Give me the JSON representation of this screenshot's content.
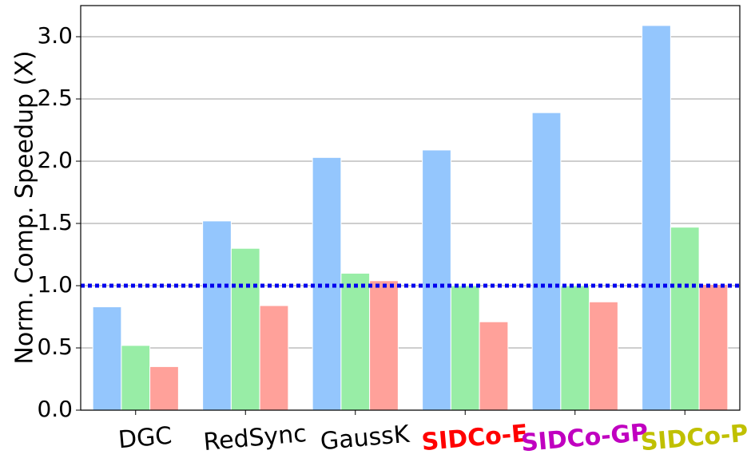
{
  "chart_data": {
    "type": "bar",
    "y_label": "Norm. Comp. Speedup (X)",
    "categories": [
      "DGC",
      "RedSync",
      "GaussK",
      "SIDCo-E",
      "SIDCo-GP",
      "SIDCo-P"
    ],
    "category_colors": [
      "#000000",
      "#000000",
      "#000000",
      "#ff0000",
      "#c000c0",
      "#c0c000"
    ],
    "series": [
      {
        "color": "#94c6fd",
        "values": [
          0.83,
          1.52,
          2.03,
          2.09,
          2.39,
          3.09
        ]
      },
      {
        "color": "#98eda6",
        "values": [
          0.52,
          1.3,
          1.1,
          1.0,
          1.0,
          1.47
        ]
      },
      {
        "color": "#ffa19a",
        "values": [
          0.35,
          0.84,
          1.04,
          0.71,
          0.87,
          1.01
        ]
      }
    ],
    "ylim": [
      0,
      3.25
    ],
    "yticks": [
      {
        "value": 0,
        "label": "0.0"
      },
      {
        "value": 0.5,
        "label": "0.5"
      },
      {
        "value": 1,
        "label": "1.0"
      },
      {
        "value": 1.5,
        "label": "1.5"
      },
      {
        "value": 2,
        "label": "2.0"
      },
      {
        "value": 2.5,
        "label": "2.5"
      },
      {
        "value": 3,
        "label": "3.0"
      }
    ],
    "grid": true,
    "reference_line": {
      "value": 1,
      "color": "#0000ee"
    }
  }
}
